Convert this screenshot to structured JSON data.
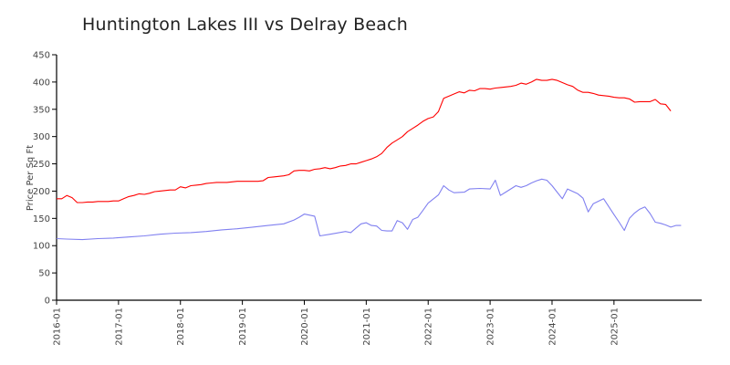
{
  "chart_data": {
    "type": "line",
    "title": "Huntington Lakes III vs Delray Beach",
    "ylabel": "Price Per Sq Ft",
    "xlabel": "",
    "ylim": [
      0,
      450
    ],
    "y_ticks": [
      0,
      50,
      100,
      150,
      200,
      250,
      300,
      350,
      400,
      450
    ],
    "xlim": [
      "2016-01",
      "2026-06"
    ],
    "x_ticks": [
      "2016-01",
      "2017-01",
      "2018-01",
      "2019-01",
      "2020-01",
      "2021-01",
      "2022-01",
      "2023-01",
      "2024-01",
      "2025-01"
    ],
    "grid": false,
    "legend": "none",
    "series": [
      {
        "color": "#ff0000",
        "points": [
          [
            "2016-01",
            186
          ],
          [
            "2016-02",
            186
          ],
          [
            "2016-03",
            192
          ],
          [
            "2016-04",
            188
          ],
          [
            "2016-05",
            179
          ],
          [
            "2016-06",
            179
          ],
          [
            "2016-07",
            180
          ],
          [
            "2016-08",
            180
          ],
          [
            "2016-09",
            181
          ],
          [
            "2016-10",
            181
          ],
          [
            "2016-11",
            181
          ],
          [
            "2016-12",
            182
          ],
          [
            "2017-01",
            182
          ],
          [
            "2017-02",
            186
          ],
          [
            "2017-03",
            190
          ],
          [
            "2017-04",
            192
          ],
          [
            "2017-05",
            195
          ],
          [
            "2017-06",
            194
          ],
          [
            "2017-07",
            196
          ],
          [
            "2017-08",
            199
          ],
          [
            "2017-09",
            200
          ],
          [
            "2017-10",
            201
          ],
          [
            "2017-11",
            202
          ],
          [
            "2017-12",
            202
          ],
          [
            "2018-01",
            208
          ],
          [
            "2018-02",
            206
          ],
          [
            "2018-03",
            210
          ],
          [
            "2018-04",
            211
          ],
          [
            "2018-05",
            212
          ],
          [
            "2018-06",
            214
          ],
          [
            "2018-07",
            215
          ],
          [
            "2018-08",
            216
          ],
          [
            "2018-09",
            216
          ],
          [
            "2018-10",
            216
          ],
          [
            "2018-11",
            217
          ],
          [
            "2018-12",
            218
          ],
          [
            "2019-01",
            218
          ],
          [
            "2019-02",
            218
          ],
          [
            "2019-03",
            218
          ],
          [
            "2019-04",
            218
          ],
          [
            "2019-05",
            219
          ],
          [
            "2019-06",
            225
          ],
          [
            "2019-07",
            226
          ],
          [
            "2019-08",
            227
          ],
          [
            "2019-09",
            228
          ],
          [
            "2019-10",
            230
          ],
          [
            "2019-11",
            237
          ],
          [
            "2019-12",
            238
          ],
          [
            "2020-01",
            238
          ],
          [
            "2020-02",
            237
          ],
          [
            "2020-03",
            240
          ],
          [
            "2020-04",
            241
          ],
          [
            "2020-05",
            243
          ],
          [
            "2020-06",
            241
          ],
          [
            "2020-07",
            243
          ],
          [
            "2020-08",
            246
          ],
          [
            "2020-09",
            247
          ],
          [
            "2020-10",
            250
          ],
          [
            "2020-11",
            250
          ],
          [
            "2020-12",
            253
          ],
          [
            "2021-01",
            256
          ],
          [
            "2021-02",
            259
          ],
          [
            "2021-03",
            263
          ],
          [
            "2021-04",
            269
          ],
          [
            "2021-05",
            280
          ],
          [
            "2021-06",
            288
          ],
          [
            "2021-07",
            294
          ],
          [
            "2021-08",
            300
          ],
          [
            "2021-09",
            309
          ],
          [
            "2021-10",
            315
          ],
          [
            "2021-11",
            321
          ],
          [
            "2021-12",
            328
          ],
          [
            "2022-01",
            333
          ],
          [
            "2022-02",
            336
          ],
          [
            "2022-03",
            346
          ],
          [
            "2022-04",
            370
          ],
          [
            "2022-05",
            374
          ],
          [
            "2022-06",
            378
          ],
          [
            "2022-07",
            382
          ],
          [
            "2022-08",
            380
          ],
          [
            "2022-09",
            385
          ],
          [
            "2022-10",
            384
          ],
          [
            "2022-11",
            388
          ],
          [
            "2022-12",
            388
          ],
          [
            "2023-01",
            387
          ],
          [
            "2023-02",
            389
          ],
          [
            "2023-03",
            390
          ],
          [
            "2023-04",
            391
          ],
          [
            "2023-05",
            392
          ],
          [
            "2023-06",
            394
          ],
          [
            "2023-07",
            398
          ],
          [
            "2023-08",
            396
          ],
          [
            "2023-09",
            400
          ],
          [
            "2023-10",
            405
          ],
          [
            "2023-11",
            403
          ],
          [
            "2023-12",
            403
          ],
          [
            "2024-01",
            405
          ],
          [
            "2024-02",
            403
          ],
          [
            "2024-03",
            399
          ],
          [
            "2024-04",
            395
          ],
          [
            "2024-05",
            392
          ],
          [
            "2024-06",
            385
          ],
          [
            "2024-07",
            381
          ],
          [
            "2024-08",
            381
          ],
          [
            "2024-09",
            379
          ],
          [
            "2024-10",
            376
          ],
          [
            "2024-11",
            375
          ],
          [
            "2024-12",
            374
          ],
          [
            "2025-01",
            372
          ],
          [
            "2025-02",
            371
          ],
          [
            "2025-03",
            371
          ],
          [
            "2025-04",
            369
          ],
          [
            "2025-05",
            363
          ],
          [
            "2025-06",
            364
          ],
          [
            "2025-07",
            364
          ],
          [
            "2025-08",
            364
          ],
          [
            "2025-09",
            368
          ],
          [
            "2025-10",
            360
          ],
          [
            "2025-11",
            359
          ],
          [
            "2025-12",
            347
          ]
        ]
      },
      {
        "color": "#8080f0",
        "points": [
          [
            "2016-01",
            113
          ],
          [
            "2016-03",
            112
          ],
          [
            "2016-06",
            111
          ],
          [
            "2016-09",
            113
          ],
          [
            "2016-12",
            114
          ],
          [
            "2017-03",
            116
          ],
          [
            "2017-06",
            118
          ],
          [
            "2017-09",
            121
          ],
          [
            "2017-12",
            123
          ],
          [
            "2018-03",
            124
          ],
          [
            "2018-06",
            126
          ],
          [
            "2018-09",
            129
          ],
          [
            "2018-12",
            131
          ],
          [
            "2019-03",
            134
          ],
          [
            "2019-06",
            137
          ],
          [
            "2019-09",
            140
          ],
          [
            "2019-11",
            147
          ],
          [
            "2019-12",
            152
          ],
          [
            "2020-01",
            158
          ],
          [
            "2020-03",
            154
          ],
          [
            "2020-04",
            118
          ],
          [
            "2020-06",
            121
          ],
          [
            "2020-09",
            126
          ],
          [
            "2020-10",
            124
          ],
          [
            "2020-11",
            132
          ],
          [
            "2020-12",
            140
          ],
          [
            "2021-01",
            142
          ],
          [
            "2021-02",
            137
          ],
          [
            "2021-03",
            136
          ],
          [
            "2021-04",
            128
          ],
          [
            "2021-05",
            127
          ],
          [
            "2021-06",
            127
          ],
          [
            "2021-07",
            146
          ],
          [
            "2021-08",
            142
          ],
          [
            "2021-09",
            130
          ],
          [
            "2021-10",
            148
          ],
          [
            "2021-11",
            152
          ],
          [
            "2021-12",
            165
          ],
          [
            "2022-01",
            178
          ],
          [
            "2022-03",
            193
          ],
          [
            "2022-04",
            210
          ],
          [
            "2022-05",
            202
          ],
          [
            "2022-06",
            197
          ],
          [
            "2022-08",
            198
          ],
          [
            "2022-09",
            204
          ],
          [
            "2022-11",
            205
          ],
          [
            "2023-01",
            204
          ],
          [
            "2023-02",
            220
          ],
          [
            "2023-03",
            192
          ],
          [
            "2023-04",
            198
          ],
          [
            "2023-06",
            210
          ],
          [
            "2023-07",
            207
          ],
          [
            "2023-08",
            210
          ],
          [
            "2023-09",
            215
          ],
          [
            "2023-10",
            219
          ],
          [
            "2023-11",
            222
          ],
          [
            "2023-12",
            220
          ],
          [
            "2024-01",
            210
          ],
          [
            "2024-02",
            198
          ],
          [
            "2024-03",
            186
          ],
          [
            "2024-04",
            204
          ],
          [
            "2024-06",
            195
          ],
          [
            "2024-07",
            187
          ],
          [
            "2024-08",
            162
          ],
          [
            "2024-09",
            177
          ],
          [
            "2024-11",
            186
          ],
          [
            "2025-01",
            157
          ],
          [
            "2025-02",
            143
          ],
          [
            "2025-03",
            128
          ],
          [
            "2025-04",
            150
          ],
          [
            "2025-05",
            160
          ],
          [
            "2025-06",
            167
          ],
          [
            "2025-07",
            171
          ],
          [
            "2025-08",
            159
          ],
          [
            "2025-09",
            143
          ],
          [
            "2025-10",
            141
          ],
          [
            "2025-11",
            138
          ],
          [
            "2025-12",
            134
          ],
          [
            "2026-01",
            137
          ],
          [
            "2026-02",
            137
          ]
        ]
      }
    ]
  }
}
